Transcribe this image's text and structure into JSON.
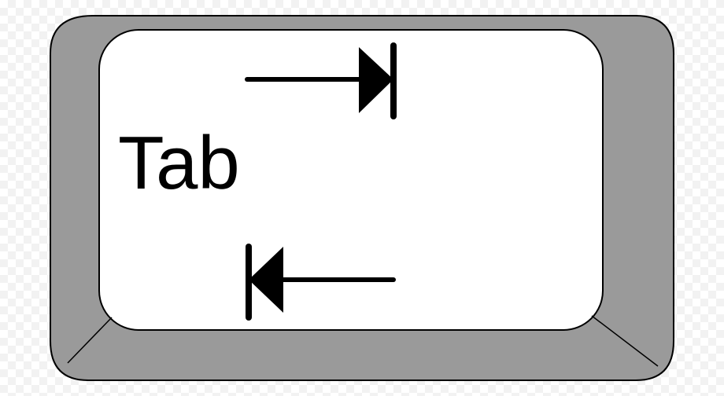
{
  "key": {
    "label": "Tab",
    "icons": [
      "tab-forward-arrow-icon",
      "tab-backward-arrow-icon"
    ],
    "colors": {
      "bevel": "#9a9a9a",
      "face": "#ffffff",
      "outline": "#000000",
      "text": "#000000"
    }
  }
}
